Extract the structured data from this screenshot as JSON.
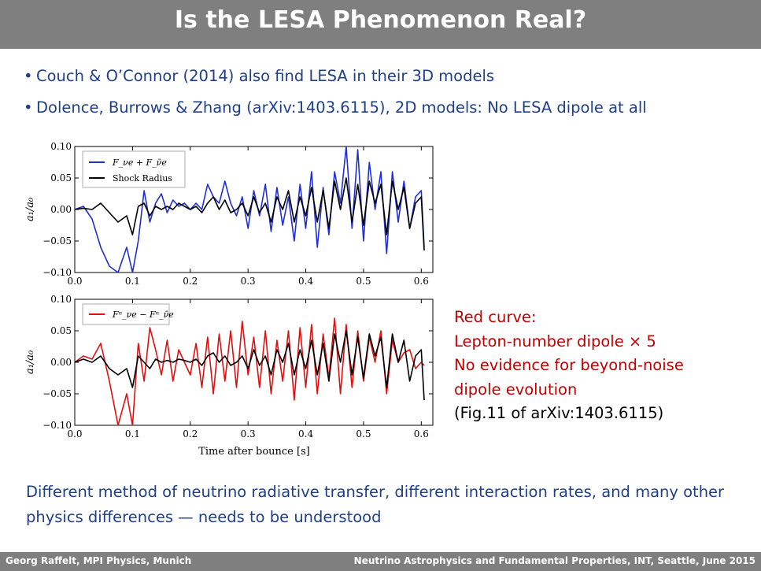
{
  "slide": {
    "title": "Is the LESA Phenomenon Real?",
    "bullets": [
      "Couch & O’Connor (2014) also find LESA in their 3D models",
      "Dolence, Burrows & Zhang (arXiv:1403.6115), 2D models: No LESA dipole at all"
    ],
    "note": {
      "line1": "Red curve:",
      "line2": "Lepton-number dipole × 5",
      "line3": "No evidence for beyond-noise",
      "line4": "dipole evolution",
      "line5": "(Fig.11 of arXiv:1403.6115)"
    },
    "conclusion": "Different method of neutrino radiative transfer, different interaction rates, and many other physics differences — needs to be understood",
    "footer": {
      "left": "Georg Raffelt, MPI Physics, Munich",
      "right": "Neutrino Astrophysics and Fundamental Properties, INT, Seattle, June 2015"
    }
  },
  "chart_data": [
    {
      "type": "line",
      "panel": "top",
      "xlim": [
        0.0,
        0.62
      ],
      "ylim": [
        -0.1,
        0.1
      ],
      "xticks": [
        "0.0",
        "0.1",
        "0.2",
        "0.3",
        "0.4",
        "0.5",
        "0.6"
      ],
      "yticks": [
        "0.10",
        "0.05",
        "0.00",
        "−0.05",
        "−0.10"
      ],
      "ytick_values": [
        0.1,
        0.05,
        0.0,
        -0.05,
        -0.1
      ],
      "ylabel": "a₁/a₀",
      "legend": "top-left",
      "series": [
        {
          "name": "F_νe + F_ν̄e",
          "color": "#2030d0",
          "x": [
            0.0,
            0.015,
            0.03,
            0.045,
            0.06,
            0.075,
            0.09,
            0.1,
            0.11,
            0.12,
            0.13,
            0.14,
            0.15,
            0.16,
            0.17,
            0.18,
            0.19,
            0.2,
            0.21,
            0.22,
            0.23,
            0.24,
            0.25,
            0.26,
            0.27,
            0.28,
            0.29,
            0.3,
            0.31,
            0.32,
            0.33,
            0.34,
            0.35,
            0.36,
            0.37,
            0.38,
            0.39,
            0.4,
            0.41,
            0.42,
            0.43,
            0.44,
            0.45,
            0.46,
            0.47,
            0.48,
            0.49,
            0.5,
            0.51,
            0.52,
            0.53,
            0.54,
            0.55,
            0.56,
            0.57,
            0.58,
            0.59,
            0.6,
            0.605
          ],
          "y": [
            0.0,
            0.005,
            -0.015,
            -0.06,
            -0.09,
            -0.1,
            -0.06,
            -0.1,
            -0.05,
            0.03,
            -0.02,
            0.01,
            0.025,
            -0.005,
            0.015,
            0.005,
            0.01,
            0.0,
            0.01,
            0.0,
            0.04,
            0.02,
            0.01,
            0.045,
            0.01,
            -0.01,
            0.02,
            -0.03,
            0.03,
            -0.01,
            0.04,
            -0.035,
            0.035,
            -0.025,
            0.02,
            -0.05,
            0.04,
            -0.03,
            0.06,
            -0.06,
            0.035,
            -0.04,
            0.06,
            0.01,
            0.1,
            -0.03,
            0.095,
            -0.05,
            0.075,
            0.0,
            0.06,
            -0.07,
            0.06,
            -0.02,
            0.045,
            -0.03,
            0.02,
            0.03,
            -0.06
          ]
        },
        {
          "name": "Shock Radius",
          "color": "#000000",
          "x": [
            0.0,
            0.015,
            0.03,
            0.045,
            0.06,
            0.075,
            0.09,
            0.1,
            0.11,
            0.12,
            0.13,
            0.14,
            0.15,
            0.16,
            0.17,
            0.18,
            0.19,
            0.2,
            0.21,
            0.22,
            0.23,
            0.24,
            0.25,
            0.26,
            0.27,
            0.28,
            0.29,
            0.3,
            0.31,
            0.32,
            0.33,
            0.34,
            0.35,
            0.36,
            0.37,
            0.38,
            0.39,
            0.4,
            0.41,
            0.42,
            0.43,
            0.44,
            0.45,
            0.46,
            0.47,
            0.48,
            0.49,
            0.5,
            0.51,
            0.52,
            0.53,
            0.54,
            0.55,
            0.56,
            0.57,
            0.58,
            0.59,
            0.6,
            0.605
          ],
          "y": [
            0.0,
            0.002,
            0.0,
            0.01,
            -0.005,
            -0.02,
            -0.01,
            -0.04,
            0.005,
            0.01,
            -0.01,
            0.005,
            0.0,
            0.005,
            0.0,
            0.01,
            0.005,
            0.0,
            0.005,
            -0.005,
            0.01,
            0.02,
            0.0,
            0.015,
            -0.005,
            0.0,
            0.01,
            -0.01,
            0.02,
            -0.005,
            0.01,
            -0.02,
            0.02,
            0.0,
            0.03,
            -0.02,
            0.02,
            -0.01,
            0.035,
            -0.02,
            0.03,
            -0.03,
            0.045,
            0.0,
            0.05,
            -0.02,
            0.04,
            -0.025,
            0.045,
            0.01,
            0.04,
            -0.04,
            0.045,
            0.0,
            0.035,
            -0.03,
            0.01,
            0.02,
            -0.065
          ]
        }
      ]
    },
    {
      "type": "line",
      "panel": "bottom",
      "xlim": [
        0.0,
        0.62
      ],
      "ylim": [
        -0.1,
        0.1
      ],
      "xticks": [
        "0.0",
        "0.1",
        "0.2",
        "0.3",
        "0.4",
        "0.5",
        "0.6"
      ],
      "yticks": [
        "0.10",
        "0.05",
        "0.00",
        "−0.05",
        "−0.10"
      ],
      "ytick_values": [
        0.1,
        0.05,
        0.0,
        -0.05,
        -0.1
      ],
      "xlabel": "Time after bounce [s]",
      "ylabel": "a₁/a₀",
      "legend": "top-left",
      "series": [
        {
          "name": "Fⁿ_νe − Fⁿ_ν̄e",
          "color": "#e01010",
          "x": [
            0.0,
            0.015,
            0.03,
            0.045,
            0.06,
            0.075,
            0.09,
            0.1,
            0.11,
            0.12,
            0.13,
            0.14,
            0.15,
            0.16,
            0.17,
            0.18,
            0.19,
            0.2,
            0.21,
            0.22,
            0.23,
            0.24,
            0.25,
            0.26,
            0.27,
            0.28,
            0.29,
            0.3,
            0.31,
            0.32,
            0.33,
            0.34,
            0.35,
            0.36,
            0.37,
            0.38,
            0.39,
            0.4,
            0.41,
            0.42,
            0.43,
            0.44,
            0.45,
            0.46,
            0.47,
            0.48,
            0.49,
            0.5,
            0.51,
            0.52,
            0.53,
            0.54,
            0.55,
            0.56,
            0.57,
            0.58,
            0.59,
            0.6,
            0.605
          ],
          "y": [
            0.0,
            0.01,
            0.005,
            0.03,
            -0.03,
            -0.1,
            -0.05,
            -0.1,
            0.03,
            -0.03,
            0.055,
            0.02,
            -0.02,
            0.035,
            -0.03,
            0.02,
            0.0,
            -0.02,
            0.03,
            -0.04,
            0.04,
            -0.05,
            0.045,
            -0.03,
            0.05,
            -0.04,
            0.065,
            -0.02,
            0.04,
            -0.04,
            0.05,
            -0.05,
            0.035,
            -0.03,
            0.05,
            -0.06,
            0.055,
            -0.04,
            0.06,
            -0.05,
            0.045,
            -0.025,
            0.07,
            -0.05,
            0.06,
            -0.04,
            0.05,
            -0.03,
            0.04,
            0.0,
            0.05,
            -0.05,
            0.035,
            0.0,
            0.015,
            0.02,
            -0.01,
            0.0,
            -0.005
          ]
        },
        {
          "name": "",
          "color": "#000000",
          "x": [
            0.0,
            0.015,
            0.03,
            0.045,
            0.06,
            0.075,
            0.09,
            0.1,
            0.11,
            0.12,
            0.13,
            0.14,
            0.15,
            0.16,
            0.17,
            0.18,
            0.19,
            0.2,
            0.21,
            0.22,
            0.23,
            0.24,
            0.25,
            0.26,
            0.27,
            0.28,
            0.29,
            0.3,
            0.31,
            0.32,
            0.33,
            0.34,
            0.35,
            0.36,
            0.37,
            0.38,
            0.39,
            0.4,
            0.41,
            0.42,
            0.43,
            0.44,
            0.45,
            0.46,
            0.47,
            0.48,
            0.49,
            0.5,
            0.51,
            0.52,
            0.53,
            0.54,
            0.55,
            0.56,
            0.57,
            0.58,
            0.59,
            0.6,
            0.605
          ],
          "y": [
            0.0,
            0.005,
            0.0,
            0.01,
            -0.01,
            -0.02,
            -0.01,
            -0.04,
            0.01,
            0.0,
            -0.01,
            0.005,
            0.0,
            0.003,
            0.0,
            0.005,
            0.003,
            0.0,
            0.005,
            -0.005,
            0.01,
            0.015,
            0.0,
            0.01,
            -0.005,
            0.0,
            0.01,
            -0.01,
            0.02,
            -0.005,
            0.01,
            -0.02,
            0.02,
            0.0,
            0.03,
            -0.02,
            0.02,
            -0.01,
            0.035,
            -0.02,
            0.03,
            -0.03,
            0.045,
            0.0,
            0.05,
            -0.02,
            0.04,
            -0.025,
            0.045,
            0.01,
            0.04,
            -0.04,
            0.045,
            0.0,
            0.035,
            -0.03,
            0.01,
            0.02,
            -0.06
          ]
        }
      ]
    }
  ]
}
